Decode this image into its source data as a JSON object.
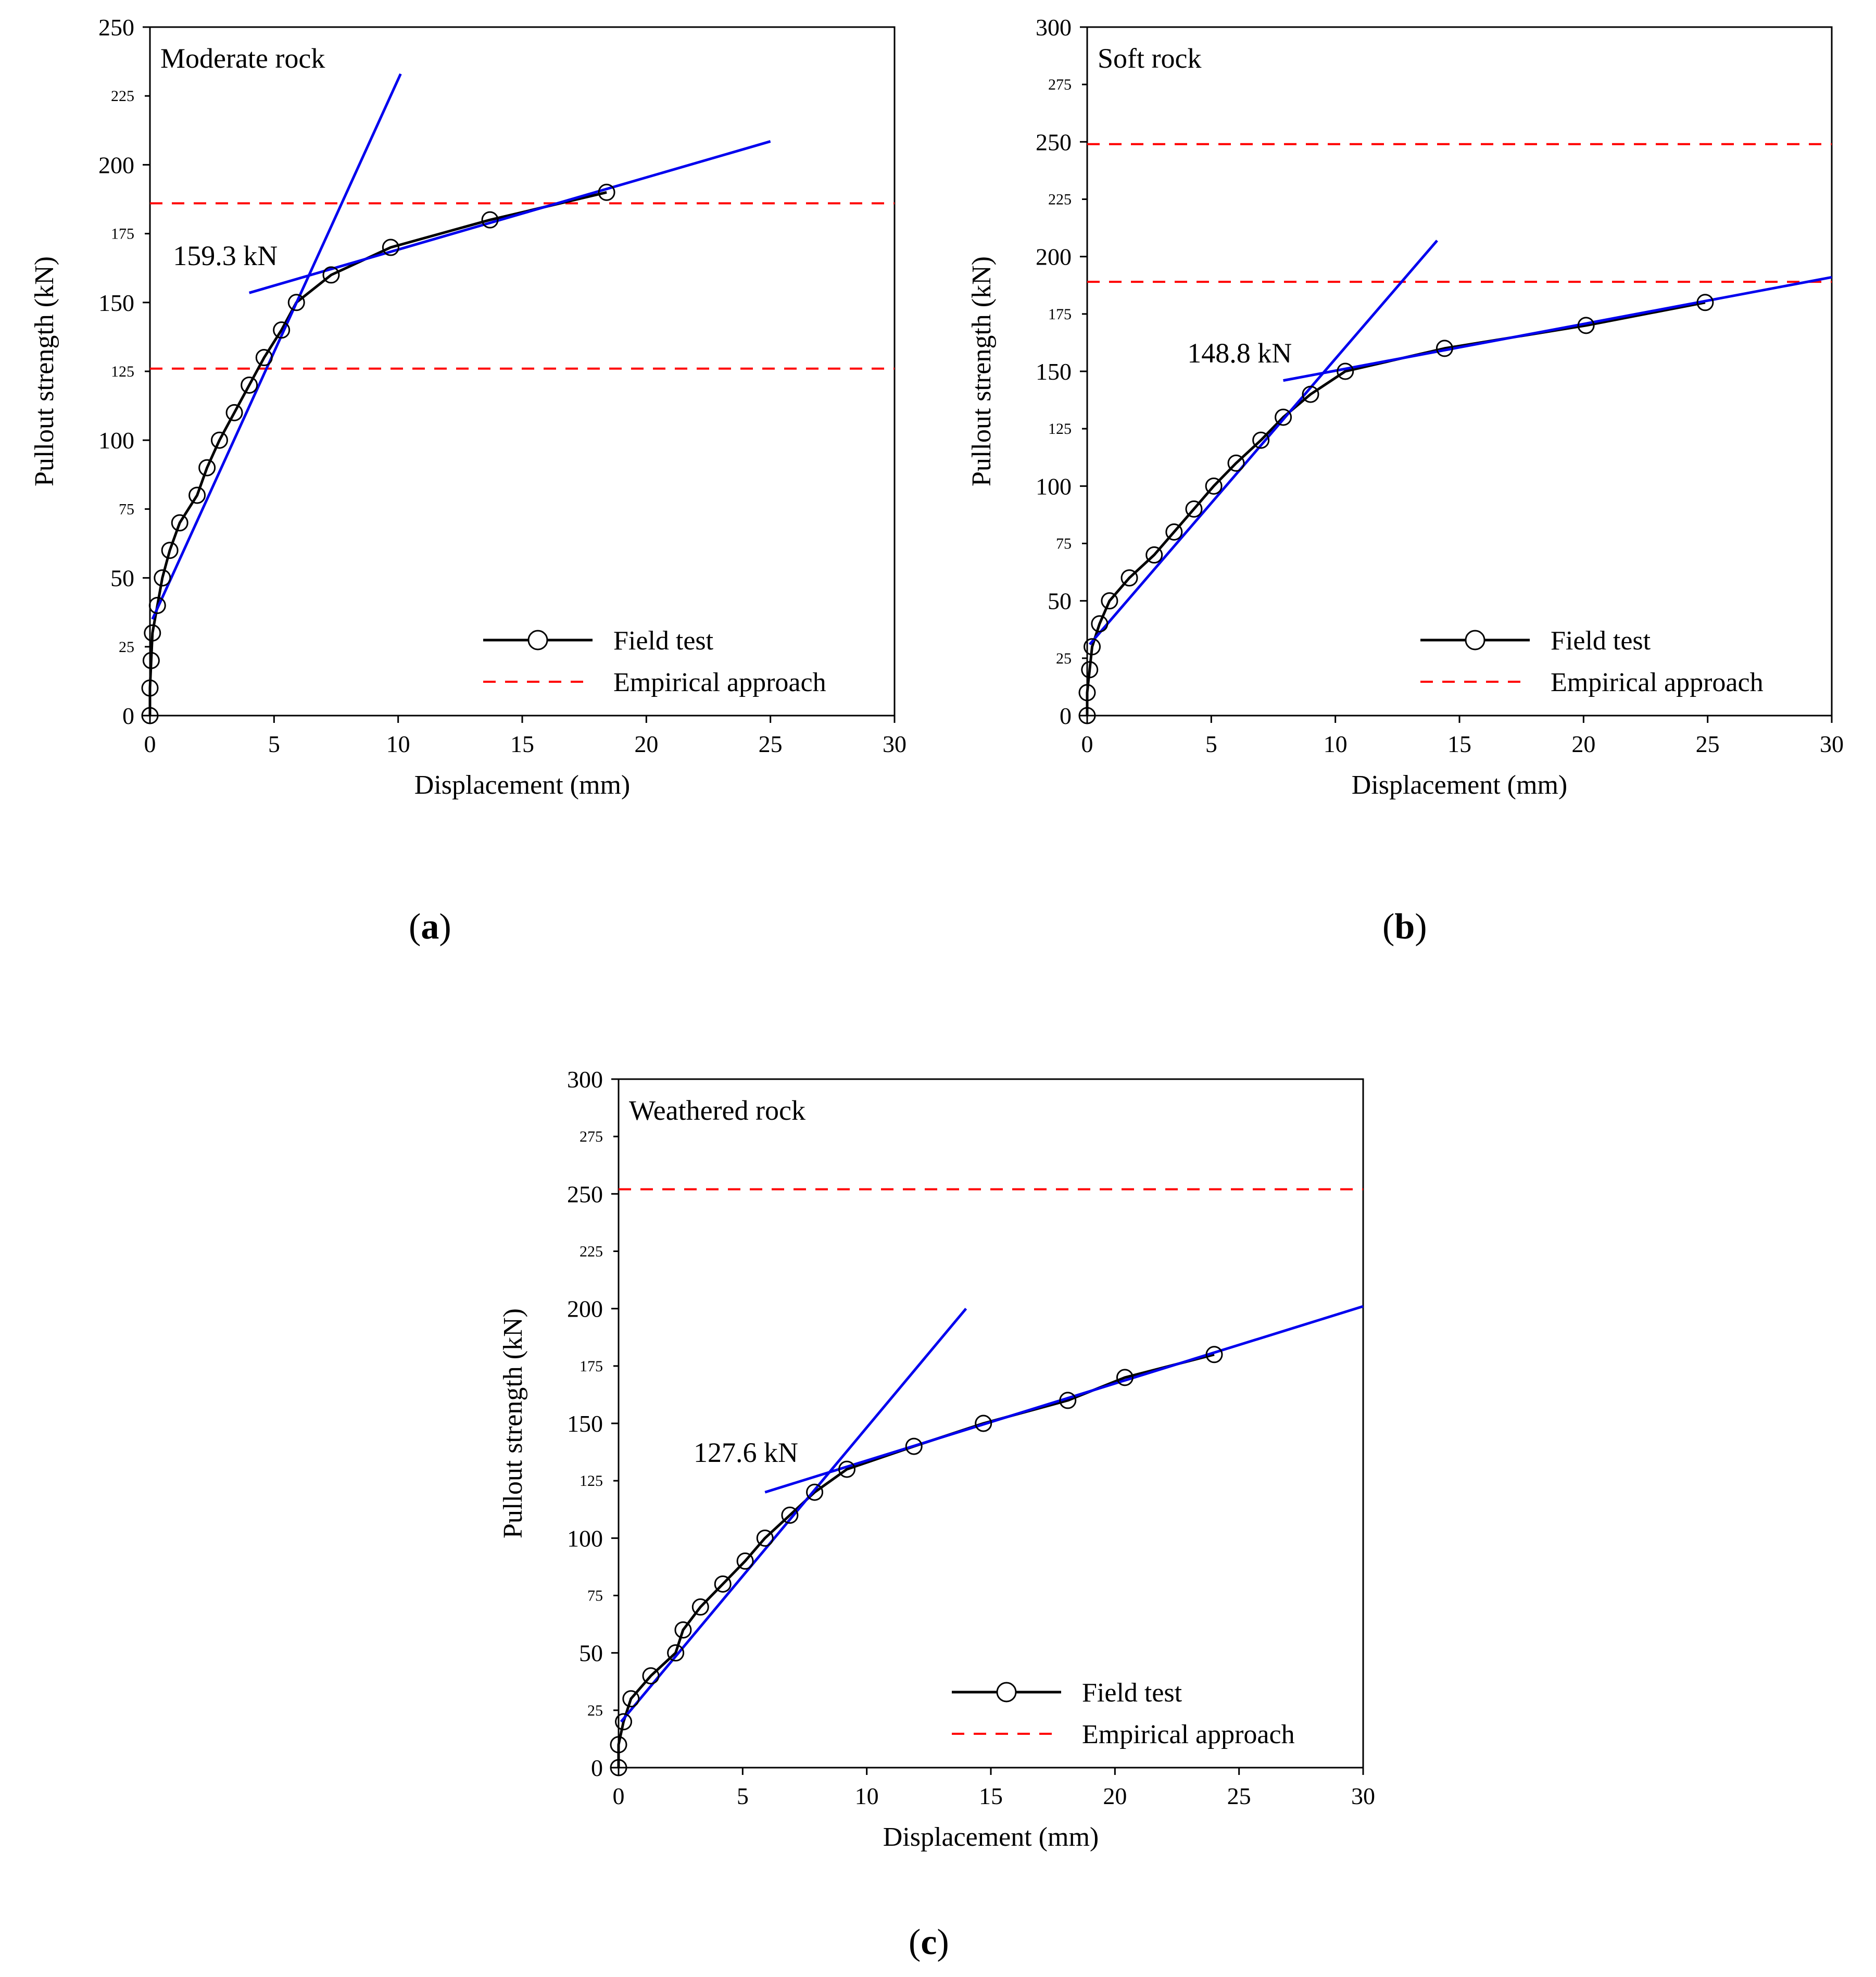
{
  "legend": {
    "field": "Field test",
    "empirical": "Empirical approach"
  },
  "axis_labels": {
    "x": "Displacement (mm)",
    "y": "Pullout strength (kN)"
  },
  "colors": {
    "field": "#000000",
    "empirical": "#ff0000",
    "fit": "#0000ee"
  },
  "captions": {
    "a": "a",
    "b": "b",
    "c": "c"
  },
  "chart_data": [
    {
      "id": "a",
      "type": "line",
      "title": "Moderate rock",
      "xlabel": "Displacement (mm)",
      "ylabel": "Pullout strength (kN)",
      "xlim": [
        0,
        30
      ],
      "ylim": [
        0,
        250
      ],
      "xticks": [
        0,
        5,
        10,
        15,
        20,
        25,
        30
      ],
      "yticks_major": [
        0,
        50,
        100,
        150,
        200,
        250
      ],
      "yticks_minor": [
        25,
        75,
        125,
        175,
        225
      ],
      "series": [
        {
          "name": "Field test",
          "x": [
            0,
            0,
            0.05,
            0.1,
            0.3,
            0.5,
            0.8,
            1.2,
            1.9,
            2.3,
            2.8,
            3.4,
            4.0,
            4.6,
            5.3,
            5.9,
            7.3,
            9.7,
            13.7,
            18.4
          ],
          "y": [
            0,
            10,
            20,
            30,
            40,
            50,
            60,
            70,
            80,
            90,
            100,
            110,
            120,
            130,
            140,
            150,
            160,
            170,
            180,
            190
          ]
        }
      ],
      "empirical_lines": [
        186,
        126
      ],
      "fit_lines": [
        {
          "x": [
            0.1,
            10.1
          ],
          "y": [
            35,
            233
          ]
        },
        {
          "x": [
            4.0,
            25.0
          ],
          "y": [
            153.5,
            208.5
          ]
        }
      ],
      "annotation": "159.3 kN"
    },
    {
      "id": "b",
      "type": "line",
      "title": "Soft rock",
      "xlabel": "Displacement (mm)",
      "ylabel": "Pullout strength (kN)",
      "xlim": [
        0,
        30
      ],
      "ylim": [
        0,
        300
      ],
      "xticks": [
        0,
        5,
        10,
        15,
        20,
        25,
        30
      ],
      "yticks_major": [
        0,
        50,
        100,
        150,
        200,
        250,
        300
      ],
      "yticks_minor": [
        25,
        75,
        125,
        175,
        225,
        275
      ],
      "series": [
        {
          "name": "Field test",
          "x": [
            0,
            0,
            0.1,
            0.2,
            0.5,
            0.9,
            1.7,
            2.7,
            3.5,
            4.3,
            5.1,
            6.0,
            7.0,
            7.9,
            9.0,
            10.4,
            14.4,
            20.1,
            24.9
          ],
          "y": [
            0,
            10,
            20,
            30,
            40,
            50,
            60,
            70,
            80,
            90,
            100,
            110,
            120,
            130,
            140,
            150,
            160,
            170,
            180
          ]
        }
      ],
      "empirical_lines": [
        249,
        189
      ],
      "fit_lines": [
        {
          "x": [
            0.1,
            14.1
          ],
          "y": [
            31,
            207
          ]
        },
        {
          "x": [
            7.9,
            30.0
          ],
          "y": [
            146,
            191
          ]
        }
      ],
      "annotation": "148.8 kN"
    },
    {
      "id": "c",
      "type": "line",
      "title": "Weathered rock",
      "xlabel": "Displacement (mm)",
      "ylabel": "Pullout strength (kN)",
      "xlim": [
        0,
        30
      ],
      "ylim": [
        0,
        300
      ],
      "xticks": [
        0,
        5,
        10,
        15,
        20,
        25,
        30
      ],
      "yticks_major": [
        0,
        50,
        100,
        150,
        200,
        250,
        300
      ],
      "yticks_minor": [
        25,
        75,
        125,
        175,
        225,
        275
      ],
      "series": [
        {
          "name": "Field test",
          "x": [
            0,
            0,
            0.2,
            0.5,
            1.3,
            2.3,
            2.6,
            3.3,
            4.2,
            5.1,
            5.9,
            6.9,
            7.9,
            9.2,
            11.9,
            14.7,
            18.1,
            20.4,
            24.0
          ],
          "y": [
            0,
            10,
            20,
            30,
            40,
            50,
            60,
            70,
            80,
            90,
            100,
            110,
            120,
            130,
            140,
            150,
            160,
            170,
            180
          ]
        }
      ],
      "empirical_lines": [
        252
      ],
      "fit_lines": [
        {
          "x": [
            0.1,
            14.0
          ],
          "y": [
            20,
            200
          ]
        },
        {
          "x": [
            5.9,
            30.0
          ],
          "y": [
            120,
            201
          ]
        }
      ],
      "annotation": "127.6 kN"
    }
  ]
}
